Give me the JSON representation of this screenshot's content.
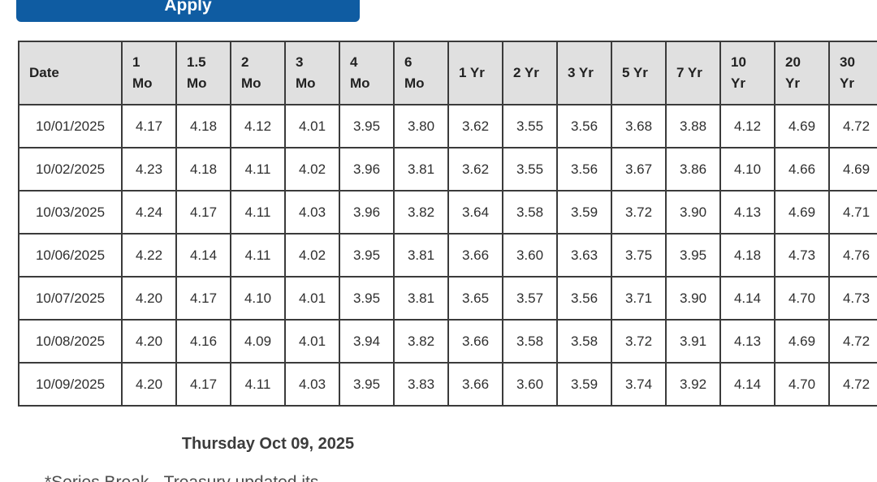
{
  "apply_button": {
    "label": "Apply"
  },
  "table": {
    "headers": [
      "Date",
      "1\nMo",
      "1.5\nMo",
      "2\nMo",
      "3\nMo",
      "4\nMo",
      "6\nMo",
      "1 Yr",
      "2 Yr",
      "3 Yr",
      "5 Yr",
      "7 Yr",
      "10\nYr",
      "20\nYr",
      "30\nYr"
    ],
    "rows": [
      {
        "date": "10/01/2025",
        "values": [
          "4.17",
          "4.18",
          "4.12",
          "4.01",
          "3.95",
          "3.80",
          "3.62",
          "3.55",
          "3.56",
          "3.68",
          "3.88",
          "4.12",
          "4.69",
          "4.72"
        ]
      },
      {
        "date": "10/02/2025",
        "values": [
          "4.23",
          "4.18",
          "4.11",
          "4.02",
          "3.96",
          "3.81",
          "3.62",
          "3.55",
          "3.56",
          "3.67",
          "3.86",
          "4.10",
          "4.66",
          "4.69"
        ]
      },
      {
        "date": "10/03/2025",
        "values": [
          "4.24",
          "4.17",
          "4.11",
          "4.03",
          "3.96",
          "3.82",
          "3.64",
          "3.58",
          "3.59",
          "3.72",
          "3.90",
          "4.13",
          "4.69",
          "4.71"
        ]
      },
      {
        "date": "10/06/2025",
        "values": [
          "4.22",
          "4.14",
          "4.11",
          "4.02",
          "3.95",
          "3.81",
          "3.66",
          "3.60",
          "3.63",
          "3.75",
          "3.95",
          "4.18",
          "4.73",
          "4.76"
        ]
      },
      {
        "date": "10/07/2025",
        "values": [
          "4.20",
          "4.17",
          "4.10",
          "4.01",
          "3.95",
          "3.81",
          "3.65",
          "3.57",
          "3.56",
          "3.71",
          "3.90",
          "4.14",
          "4.70",
          "4.73"
        ]
      },
      {
        "date": "10/08/2025",
        "values": [
          "4.20",
          "4.16",
          "4.09",
          "4.01",
          "3.94",
          "3.82",
          "3.66",
          "3.58",
          "3.58",
          "3.72",
          "3.91",
          "4.13",
          "4.69",
          "4.72"
        ]
      },
      {
        "date": "10/09/2025",
        "values": [
          "4.20",
          "4.17",
          "4.11",
          "4.03",
          "3.95",
          "3.83",
          "3.66",
          "3.60",
          "3.59",
          "3.74",
          "3.92",
          "4.14",
          "4.70",
          "4.72"
        ]
      }
    ]
  },
  "footer": {
    "date_label": "Thursday Oct 09, 2025",
    "note_fragment": "*Series Break - Treasury updated its"
  },
  "colors": {
    "button_blue": "#0f5ca2",
    "header_bg": "#e0e0e0",
    "border": "#3b3b3b",
    "text": "#2f2f2f"
  }
}
